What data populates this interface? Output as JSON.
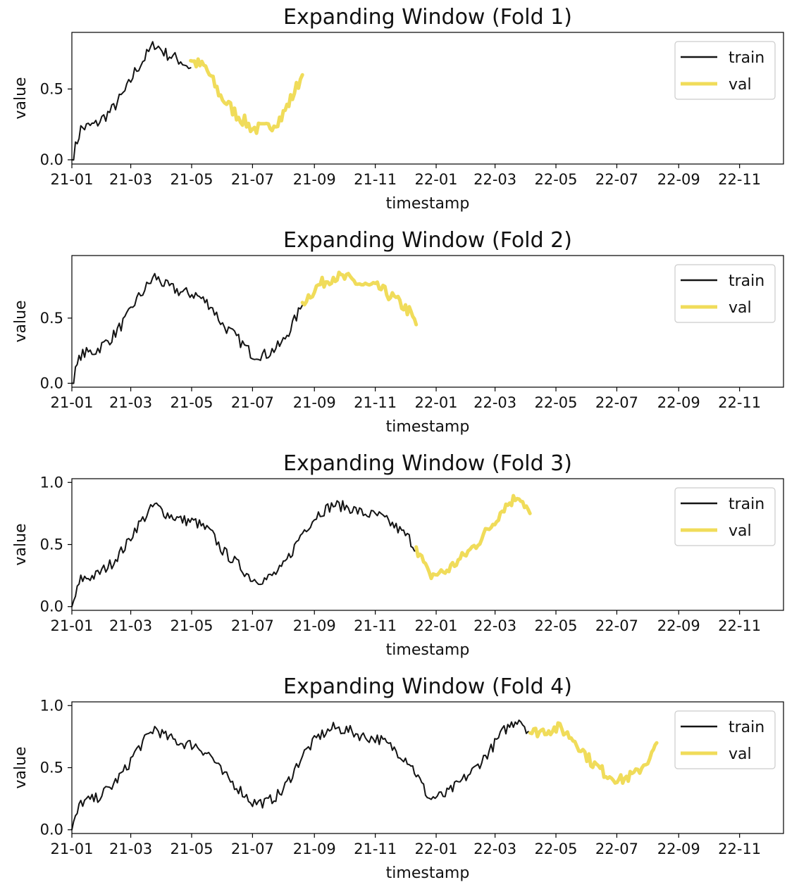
{
  "colors": {
    "train": "#141414",
    "val": "#f0dc5a",
    "axis": "#000000"
  },
  "chart_data": [
    {
      "type": "line",
      "title": "Expanding Window  (Fold 1)",
      "xlabel": "timestamp",
      "ylabel": "value",
      "x_ticks": [
        "21-01",
        "21-03",
        "21-05",
        "21-07",
        "21-09",
        "21-11",
        "22-01",
        "22-03",
        "22-05",
        "22-07",
        "22-09",
        "22-11"
      ],
      "y_ticks": [
        "0.0",
        "0.5"
      ],
      "y_tick_values": [
        0.0,
        0.5
      ],
      "xlim": [
        "2021-01-01",
        "2022-12-15"
      ],
      "ylim": [
        -0.03,
        0.9
      ],
      "legend": {
        "position": "top-right",
        "entries": [
          "train",
          "val"
        ]
      },
      "series": [
        {
          "name": "train",
          "color": "#141414",
          "points": [
            [
              "2021-01-01",
              0.0
            ],
            [
              "2021-01-10",
              0.22
            ],
            [
              "2021-01-25",
              0.25
            ],
            [
              "2021-02-10",
              0.35
            ],
            [
              "2021-02-25",
              0.5
            ],
            [
              "2021-03-05",
              0.62
            ],
            [
              "2021-03-15",
              0.72
            ],
            [
              "2021-03-25",
              0.82
            ],
            [
              "2021-04-05",
              0.75
            ],
            [
              "2021-04-20",
              0.7
            ],
            [
              "2021-04-30",
              0.65
            ]
          ]
        },
        {
          "name": "val",
          "color": "#f0dc5a",
          "points": [
            [
              "2021-04-30",
              0.7
            ],
            [
              "2021-05-15",
              0.65
            ],
            [
              "2021-05-30",
              0.45
            ],
            [
              "2021-06-15",
              0.32
            ],
            [
              "2021-07-01",
              0.22
            ],
            [
              "2021-07-15",
              0.22
            ],
            [
              "2021-07-30",
              0.3
            ],
            [
              "2021-08-10",
              0.45
            ],
            [
              "2021-08-20",
              0.6
            ]
          ]
        }
      ]
    },
    {
      "type": "line",
      "title": "Expanding Window  (Fold 2)",
      "xlabel": "timestamp",
      "ylabel": "value",
      "x_ticks": [
        "21-01",
        "21-03",
        "21-05",
        "21-07",
        "21-09",
        "21-11",
        "22-01",
        "22-03",
        "22-05",
        "22-07",
        "22-09",
        "22-11"
      ],
      "y_ticks": [
        "0.0",
        "0.5"
      ],
      "y_tick_values": [
        0.0,
        0.5
      ],
      "xlim": [
        "2021-01-01",
        "2022-12-15"
      ],
      "ylim": [
        -0.03,
        0.98
      ],
      "legend": {
        "position": "top-right",
        "entries": [
          "train",
          "val"
        ]
      },
      "series": [
        {
          "name": "train",
          "color": "#141414",
          "points": [
            [
              "2021-01-01",
              0.0
            ],
            [
              "2021-01-10",
              0.22
            ],
            [
              "2021-01-25",
              0.25
            ],
            [
              "2021-02-10",
              0.35
            ],
            [
              "2021-02-25",
              0.5
            ],
            [
              "2021-03-05",
              0.62
            ],
            [
              "2021-03-15",
              0.72
            ],
            [
              "2021-03-25",
              0.82
            ],
            [
              "2021-04-05",
              0.75
            ],
            [
              "2021-04-20",
              0.7
            ],
            [
              "2021-05-05",
              0.68
            ],
            [
              "2021-05-20",
              0.6
            ],
            [
              "2021-06-01",
              0.45
            ],
            [
              "2021-06-15",
              0.35
            ],
            [
              "2021-07-01",
              0.22
            ],
            [
              "2021-07-15",
              0.22
            ],
            [
              "2021-07-30",
              0.3
            ],
            [
              "2021-08-10",
              0.45
            ],
            [
              "2021-08-20",
              0.6
            ]
          ]
        },
        {
          "name": "val",
          "color": "#f0dc5a",
          "points": [
            [
              "2021-08-20",
              0.62
            ],
            [
              "2021-09-05",
              0.75
            ],
            [
              "2021-09-20",
              0.82
            ],
            [
              "2021-10-05",
              0.8
            ],
            [
              "2021-10-20",
              0.75
            ],
            [
              "2021-11-05",
              0.73
            ],
            [
              "2021-11-20",
              0.65
            ],
            [
              "2021-12-05",
              0.55
            ],
            [
              "2021-12-12",
              0.45
            ]
          ]
        }
      ]
    },
    {
      "type": "line",
      "title": "Expanding Window  (Fold 3)",
      "xlabel": "timestamp",
      "ylabel": "value",
      "x_ticks": [
        "21-01",
        "21-03",
        "21-05",
        "21-07",
        "21-09",
        "21-11",
        "22-01",
        "22-03",
        "22-05",
        "22-07",
        "22-09",
        "22-11"
      ],
      "y_ticks": [
        "0.0",
        "0.5",
        "1.0"
      ],
      "y_tick_values": [
        0.0,
        0.5,
        1.0
      ],
      "xlim": [
        "2021-01-01",
        "2022-12-15"
      ],
      "ylim": [
        -0.03,
        1.03
      ],
      "legend": {
        "position": "top-right",
        "entries": [
          "train",
          "val"
        ]
      },
      "series": [
        {
          "name": "train",
          "color": "#141414",
          "points": [
            [
              "2021-01-01",
              0.0
            ],
            [
              "2021-01-10",
              0.22
            ],
            [
              "2021-01-25",
              0.25
            ],
            [
              "2021-02-10",
              0.35
            ],
            [
              "2021-02-25",
              0.5
            ],
            [
              "2021-03-05",
              0.62
            ],
            [
              "2021-03-15",
              0.72
            ],
            [
              "2021-03-25",
              0.82
            ],
            [
              "2021-04-05",
              0.75
            ],
            [
              "2021-04-20",
              0.7
            ],
            [
              "2021-05-05",
              0.68
            ],
            [
              "2021-05-20",
              0.6
            ],
            [
              "2021-06-01",
              0.45
            ],
            [
              "2021-06-15",
              0.35
            ],
            [
              "2021-07-01",
              0.22
            ],
            [
              "2021-07-15",
              0.22
            ],
            [
              "2021-07-30",
              0.3
            ],
            [
              "2021-08-10",
              0.45
            ],
            [
              "2021-08-20",
              0.6
            ],
            [
              "2021-09-05",
              0.75
            ],
            [
              "2021-09-20",
              0.82
            ],
            [
              "2021-10-05",
              0.8
            ],
            [
              "2021-10-20",
              0.75
            ],
            [
              "2021-11-05",
              0.73
            ],
            [
              "2021-11-20",
              0.65
            ],
            [
              "2021-12-05",
              0.55
            ],
            [
              "2021-12-12",
              0.45
            ]
          ]
        },
        {
          "name": "val",
          "color": "#f0dc5a",
          "points": [
            [
              "2021-12-12",
              0.48
            ],
            [
              "2021-12-25",
              0.25
            ],
            [
              "2022-01-10",
              0.28
            ],
            [
              "2022-01-25",
              0.38
            ],
            [
              "2022-02-10",
              0.5
            ],
            [
              "2022-02-25",
              0.65
            ],
            [
              "2022-03-10",
              0.8
            ],
            [
              "2022-03-25",
              0.9
            ],
            [
              "2022-04-05",
              0.75
            ]
          ]
        }
      ]
    },
    {
      "type": "line",
      "title": "Expanding Window  (Fold 4)",
      "xlabel": "timestamp",
      "ylabel": "value",
      "x_ticks": [
        "21-01",
        "21-03",
        "21-05",
        "21-07",
        "21-09",
        "21-11",
        "22-01",
        "22-03",
        "22-05",
        "22-07",
        "22-09",
        "22-11"
      ],
      "y_ticks": [
        "0.0",
        "0.5",
        "1.0"
      ],
      "y_tick_values": [
        0.0,
        0.5,
        1.0
      ],
      "xlim": [
        "2021-01-01",
        "2022-12-15"
      ],
      "ylim": [
        -0.03,
        1.03
      ],
      "legend": {
        "position": "top-right",
        "entries": [
          "train",
          "val"
        ]
      },
      "series": [
        {
          "name": "train",
          "color": "#141414",
          "points": [
            [
              "2021-01-01",
              0.0
            ],
            [
              "2021-01-10",
              0.22
            ],
            [
              "2021-01-25",
              0.25
            ],
            [
              "2021-02-10",
              0.35
            ],
            [
              "2021-02-25",
              0.5
            ],
            [
              "2021-03-05",
              0.62
            ],
            [
              "2021-03-15",
              0.72
            ],
            [
              "2021-03-25",
              0.82
            ],
            [
              "2021-04-05",
              0.75
            ],
            [
              "2021-04-20",
              0.7
            ],
            [
              "2021-05-05",
              0.68
            ],
            [
              "2021-05-20",
              0.6
            ],
            [
              "2021-06-01",
              0.45
            ],
            [
              "2021-06-15",
              0.35
            ],
            [
              "2021-07-01",
              0.22
            ],
            [
              "2021-07-15",
              0.22
            ],
            [
              "2021-07-30",
              0.3
            ],
            [
              "2021-08-10",
              0.45
            ],
            [
              "2021-08-20",
              0.6
            ],
            [
              "2021-09-05",
              0.75
            ],
            [
              "2021-09-20",
              0.82
            ],
            [
              "2021-10-05",
              0.8
            ],
            [
              "2021-10-20",
              0.75
            ],
            [
              "2021-11-05",
              0.73
            ],
            [
              "2021-11-20",
              0.65
            ],
            [
              "2021-12-05",
              0.55
            ],
            [
              "2021-12-12",
              0.45
            ],
            [
              "2021-12-25",
              0.25
            ],
            [
              "2022-01-10",
              0.28
            ],
            [
              "2022-01-25",
              0.38
            ],
            [
              "2022-02-10",
              0.5
            ],
            [
              "2022-02-25",
              0.65
            ],
            [
              "2022-03-10",
              0.8
            ],
            [
              "2022-03-25",
              0.9
            ],
            [
              "2022-04-05",
              0.78
            ]
          ]
        },
        {
          "name": "val",
          "color": "#f0dc5a",
          "points": [
            [
              "2022-04-05",
              0.78
            ],
            [
              "2022-04-20",
              0.8
            ],
            [
              "2022-05-05",
              0.82
            ],
            [
              "2022-05-20",
              0.72
            ],
            [
              "2022-06-05",
              0.55
            ],
            [
              "2022-06-20",
              0.45
            ],
            [
              "2022-07-05",
              0.4
            ],
            [
              "2022-07-20",
              0.45
            ],
            [
              "2022-08-05",
              0.6
            ],
            [
              "2022-08-10",
              0.7
            ]
          ]
        }
      ]
    }
  ]
}
